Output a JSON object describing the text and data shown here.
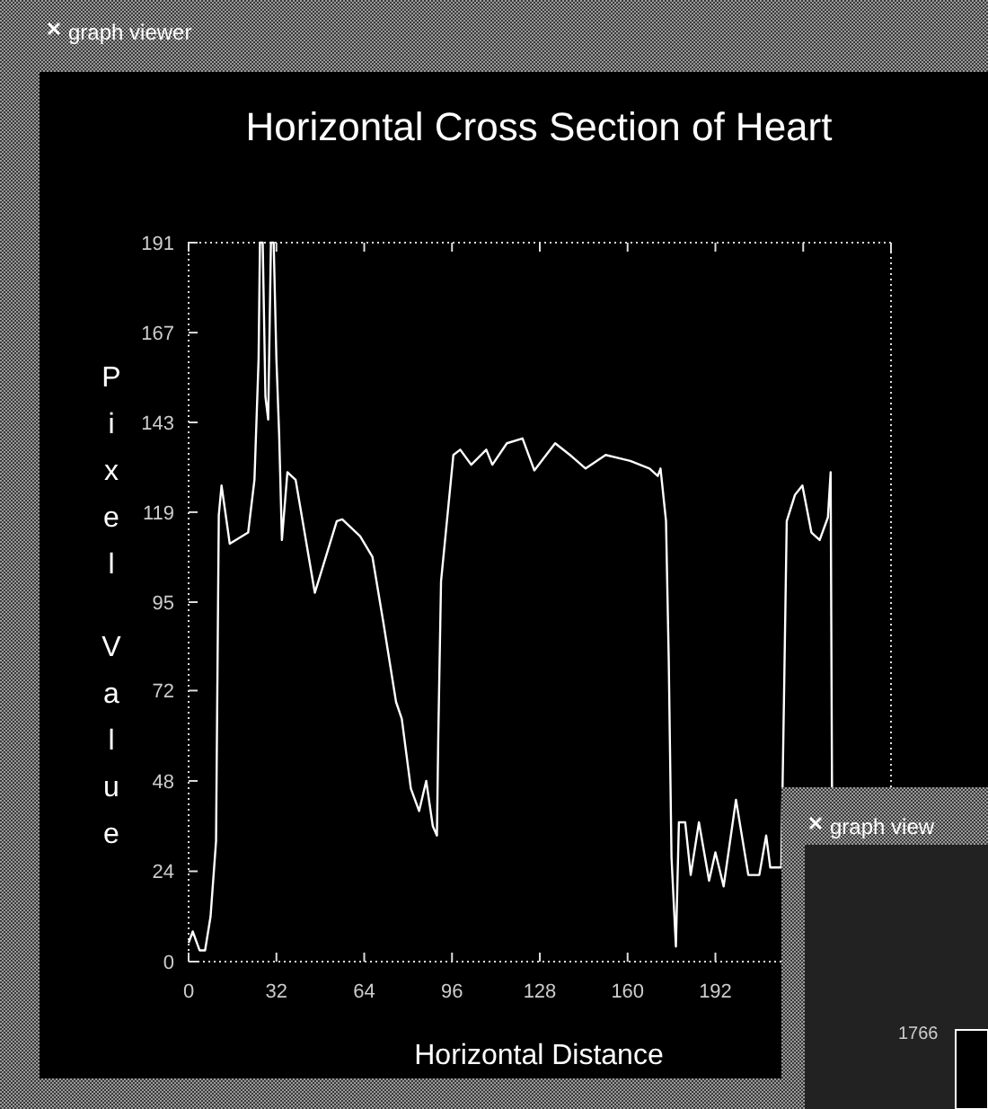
{
  "chart_data": {
    "type": "line",
    "title": "Horizontal Cross Section of Heart",
    "xlabel": "Horizontal Distance",
    "ylabel": "Pixel Value",
    "annotations": [
      "graph viewer",
      "graph view",
      "1766"
    ],
    "xlim": [
      0,
      256
    ],
    "xticks": [
      0,
      32,
      64,
      96,
      128,
      160,
      192,
      {
        "value": 224,
        "label": null
      },
      {
        "value": 256,
        "label": null
      }
    ],
    "ylim": [
      0,
      191
    ],
    "yticks": [
      0,
      24,
      48,
      72,
      {
        "value": 95.5,
        "label": "95"
      },
      {
        "value": 119.4,
        "label": "119"
      },
      {
        "value": 143.25,
        "label": "143"
      },
      {
        "value": 167.1,
        "label": "167"
      },
      191
    ],
    "grid": false,
    "series": [
      {
        "color": "#ffffff",
        "x": [
          0,
          1.5,
          4,
          6,
          8,
          10,
          11,
          12,
          15,
          21.7,
          24,
          25.5,
          26,
          27,
          28,
          29,
          30,
          31,
          32,
          33,
          34,
          36,
          39,
          46,
          54,
          56,
          62.5,
          67,
          71,
          75.6,
          77.7,
          81,
          84,
          86.6,
          89,
          90.5,
          91,
          92,
          96.5,
          99,
          103,
          108.5,
          110.7,
          116,
          121.7,
          126,
          133.6,
          139,
          144.7,
          152,
          161,
          168,
          171,
          172,
          174,
          175,
          176,
          177.6,
          178.7,
          181,
          183,
          186,
          189.7,
          192,
          195,
          199.5,
          204,
          208,
          210.5,
          212,
          216,
          217,
          218,
          221,
          223.7,
          227,
          230,
          233,
          234,
          234.5
        ],
        "values": [
          5,
          8,
          3,
          3,
          12,
          32,
          118.6,
          126.5,
          111,
          114,
          128,
          160,
          191,
          191,
          150,
          144,
          191,
          191,
          160,
          140,
          112,
          130,
          128,
          98,
          117,
          117.5,
          113,
          107.5,
          90,
          69,
          64.5,
          46,
          40,
          48,
          36,
          33.5,
          60,
          101,
          134.6,
          136,
          132,
          136,
          132,
          137.7,
          139,
          130.5,
          137.7,
          134.6,
          131,
          134.6,
          133,
          131,
          129,
          131,
          117,
          80,
          27.7,
          4,
          37,
          37,
          23,
          37,
          21.5,
          29,
          20,
          43,
          23,
          23,
          33.5,
          25,
          25,
          70,
          117,
          124,
          126.5,
          114,
          112,
          118,
          130,
          46
        ]
      }
    ]
  }
}
